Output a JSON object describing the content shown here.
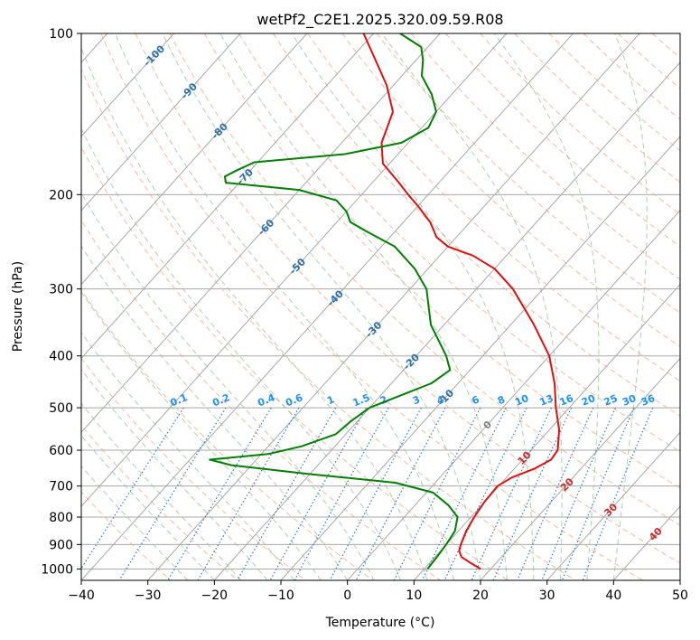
{
  "chart_data": {
    "type": "line",
    "chart_kind": "skew-T log-P diagram",
    "title": "wetPf2_C2E1.2025.320.09.59.R08",
    "xlabel": "Temperature (°C)",
    "ylabel": "Pressure (hPa)",
    "xlim": [
      -40,
      50
    ],
    "ylim": [
      1050,
      100
    ],
    "y_scale": "log",
    "x_ticks": [
      "−40",
      "−30",
      "−20",
      "−10",
      "0",
      "10",
      "20",
      "30",
      "40",
      "50"
    ],
    "y_ticks": [
      {
        "p": 100,
        "label": "100"
      },
      {
        "p": 200,
        "label": "200"
      },
      {
        "p": 300,
        "label": "300"
      },
      {
        "p": 400,
        "label": "400"
      },
      {
        "p": 500,
        "label": "500"
      },
      {
        "p": 600,
        "label": "600"
      },
      {
        "p": 700,
        "label": "700"
      },
      {
        "p": 800,
        "label": "800"
      },
      {
        "p": 900,
        "label": "900"
      },
      {
        "p": 1000,
        "label": "1000"
      }
    ],
    "grid": true,
    "colors": {
      "temperature": "#e01010",
      "dewpoint": "#008000",
      "isotherm": "#a8a8a8",
      "dry_adiabat": "#f4a582",
      "moist_adiabat": "#8fbc8f",
      "mixing_ratio": "#2b7bd8",
      "mixing_label": "#1e90ff",
      "isotherm_label": "#2a6fa8",
      "adiabat_label": "#d62728",
      "moist_label": "#808080"
    },
    "series": [
      {
        "values": [
          {
            "p": 1000,
            "t": 18.5
          },
          {
            "p": 975,
            "t": 16.2
          },
          {
            "p": 950,
            "t": 14.0
          },
          {
            "p": 925,
            "t": 12.8
          },
          {
            "p": 900,
            "t": 12.2
          },
          {
            "p": 850,
            "t": 11.2
          },
          {
            "p": 800,
            "t": 10.5
          },
          {
            "p": 750,
            "t": 10.0
          },
          {
            "p": 700,
            "t": 9.8
          },
          {
            "p": 675,
            "t": 10.8
          },
          {
            "p": 650,
            "t": 13.0
          },
          {
            "p": 625,
            "t": 14.3
          },
          {
            "p": 600,
            "t": 14.0
          },
          {
            "p": 550,
            "t": 11.5
          },
          {
            "p": 500,
            "t": 8.0
          },
          {
            "p": 450,
            "t": 4.5
          },
          {
            "p": 400,
            "t": 0.0
          },
          {
            "p": 350,
            "t": -6.5
          },
          {
            "p": 300,
            "t": -14.5
          },
          {
            "p": 275,
            "t": -20.0
          },
          {
            "p": 260,
            "t": -25.0
          },
          {
            "p": 250,
            "t": -30.0
          },
          {
            "p": 240,
            "t": -33.0
          },
          {
            "p": 225,
            "t": -36.0
          },
          {
            "p": 210,
            "t": -40.0
          },
          {
            "p": 200,
            "t": -43.0
          },
          {
            "p": 190,
            "t": -46.0
          },
          {
            "p": 175,
            "t": -51.0
          },
          {
            "p": 160,
            "t": -54.0
          },
          {
            "p": 140,
            "t": -56.5
          },
          {
            "p": 125,
            "t": -61.0
          },
          {
            "p": 110,
            "t": -67.0
          },
          {
            "p": 100,
            "t": -71.5
          }
        ]
      },
      {
        "values": [
          {
            "p": 1000,
            "t": 10.5
          },
          {
            "p": 950,
            "t": 10.3
          },
          {
            "p": 900,
            "t": 10.0
          },
          {
            "p": 850,
            "t": 9.5
          },
          {
            "p": 800,
            "t": 8.0
          },
          {
            "p": 760,
            "t": 5.0
          },
          {
            "p": 720,
            "t": 1.0
          },
          {
            "p": 690,
            "t": -6.0
          },
          {
            "p": 665,
            "t": -20.0
          },
          {
            "p": 640,
            "t": -33.0
          },
          {
            "p": 625,
            "t": -37.0
          },
          {
            "p": 610,
            "t": -29.0
          },
          {
            "p": 590,
            "t": -25.0
          },
          {
            "p": 560,
            "t": -21.5
          },
          {
            "p": 530,
            "t": -21.0
          },
          {
            "p": 500,
            "t": -20.0
          },
          {
            "p": 470,
            "t": -16.5
          },
          {
            "p": 450,
            "t": -14.0
          },
          {
            "p": 425,
            "t": -13.0
          },
          {
            "p": 400,
            "t": -15.5
          },
          {
            "p": 350,
            "t": -22.0
          },
          {
            "p": 300,
            "t": -27.5
          },
          {
            "p": 275,
            "t": -32.0
          },
          {
            "p": 250,
            "t": -38.0
          },
          {
            "p": 235,
            "t": -44.0
          },
          {
            "p": 225,
            "t": -48.0
          },
          {
            "p": 215,
            "t": -50.0
          },
          {
            "p": 205,
            "t": -53.0
          },
          {
            "p": 196,
            "t": -60.0
          },
          {
            "p": 190,
            "t": -72.0
          },
          {
            "p": 185,
            "t": -73.0
          },
          {
            "p": 180,
            "t": -72.0
          },
          {
            "p": 174,
            "t": -70.5
          },
          {
            "p": 168,
            "t": -58.0
          },
          {
            "p": 160,
            "t": -51.0
          },
          {
            "p": 150,
            "t": -49.0
          },
          {
            "p": 140,
            "t": -50.0
          },
          {
            "p": 130,
            "t": -53.0
          },
          {
            "p": 120,
            "t": -57.0
          },
          {
            "p": 112,
            "t": -59.0
          },
          {
            "p": 106,
            "t": -61.0
          },
          {
            "p": 100,
            "t": -66.0
          }
        ]
      }
    ],
    "isotherm_labels": [
      {
        "t": -100,
        "p": 110,
        "label": "-100"
      },
      {
        "t": -90,
        "p": 128,
        "label": "-90"
      },
      {
        "t": -80,
        "p": 152,
        "label": "-80"
      },
      {
        "t": -70,
        "p": 185,
        "label": "-70"
      },
      {
        "t": -60,
        "p": 230,
        "label": "-60"
      },
      {
        "t": -50,
        "p": 272,
        "label": "-50"
      },
      {
        "t": -40,
        "p": 312,
        "label": "-40"
      },
      {
        "t": -30,
        "p": 357,
        "label": "-30"
      },
      {
        "t": -20,
        "p": 410,
        "label": "-20"
      },
      {
        "t": -10,
        "p": 478,
        "label": "-10"
      }
    ],
    "mixing_ratio_labels": [
      {
        "w": 0.1,
        "label": "0.1"
      },
      {
        "w": 0.2,
        "label": "0.2"
      },
      {
        "w": 0.4,
        "label": "0.4"
      },
      {
        "w": 0.6,
        "label": "0.6"
      },
      {
        "w": 1,
        "label": "1"
      },
      {
        "w": 1.5,
        "label": "1.5"
      },
      {
        "w": 2,
        "label": "2"
      },
      {
        "w": 3,
        "label": "3"
      },
      {
        "w": 4,
        "label": "4"
      },
      {
        "w": 6,
        "label": "6"
      },
      {
        "w": 8,
        "label": "8"
      },
      {
        "w": 10,
        "label": "10"
      },
      {
        "w": 13,
        "label": "13"
      },
      {
        "w": 16,
        "label": "16"
      },
      {
        "w": 20,
        "label": "20"
      },
      {
        "w": 25,
        "label": "25"
      },
      {
        "w": 30,
        "label": "30"
      },
      {
        "w": 36,
        "label": "36"
      }
    ],
    "dry_adiabat_labels": [
      {
        "t": 10,
        "p": 620,
        "label": "10"
      },
      {
        "t": 20,
        "p": 695,
        "label": "20"
      },
      {
        "t": 30,
        "p": 775,
        "label": "30"
      },
      {
        "t": 40,
        "p": 860,
        "label": "40"
      }
    ],
    "moist_adiabat_labels": [
      {
        "t": 0,
        "p": 538,
        "label": "0"
      }
    ]
  }
}
